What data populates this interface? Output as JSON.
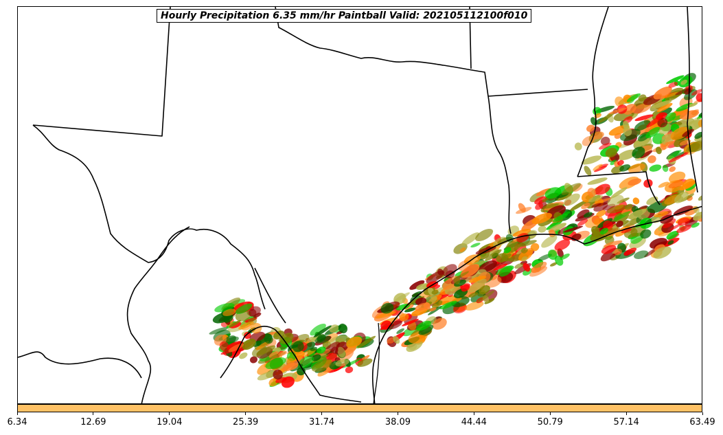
{
  "map": {
    "title": "Hourly Precipitation 6.35 mm/hr Paintball Valid: 202105112100f010",
    "region": "Texas and Gulf Coast",
    "features": [
      "state-borders",
      "coastline",
      "paintball-precipitation-blobs"
    ]
  },
  "colors": {
    "colorbar": "#ffc266",
    "member_palette": [
      "#ff0000",
      "#ff8c00",
      "#8b0000",
      "#00cc00",
      "#006400",
      "#808000",
      "#ff7f27",
      "#b5b54a"
    ]
  },
  "colorbar": {
    "ticks": [
      "6.34",
      "12.69",
      "19.04",
      "25.39",
      "31.74",
      "38.09",
      "44.44",
      "50.79",
      "57.14",
      "63.49"
    ],
    "min": 6.34,
    "max": 63.49
  }
}
